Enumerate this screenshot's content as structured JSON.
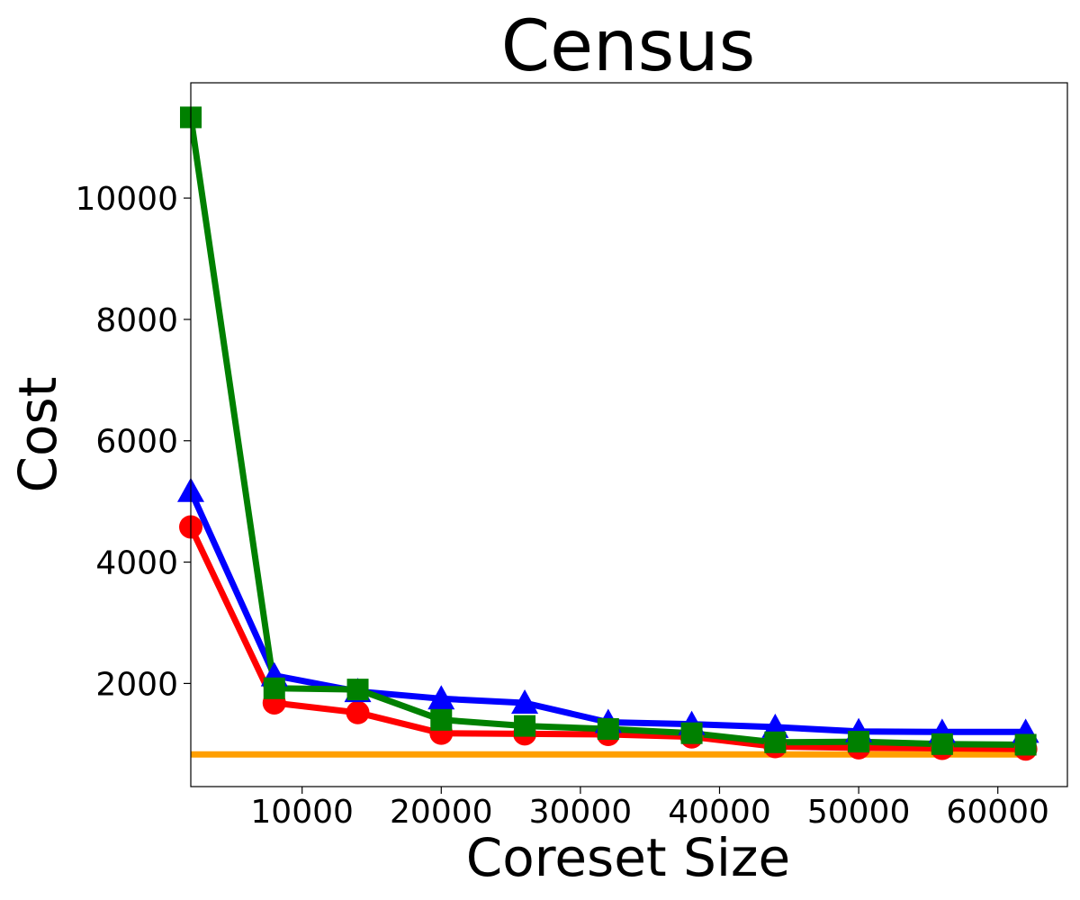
{
  "chart_data": {
    "type": "line",
    "title": "Census",
    "xlabel": "Coreset Size",
    "ylabel": "Cost",
    "xlim": [
      2000,
      65000
    ],
    "ylim": [
      300,
      11900
    ],
    "xticks": [
      10000,
      20000,
      30000,
      40000,
      50000,
      60000
    ],
    "yticks": [
      2000,
      4000,
      6000,
      8000,
      10000
    ],
    "xtick_labels": [
      "10000",
      "20000",
      "30000",
      "40000",
      "50000",
      "60000"
    ],
    "ytick_labels": [
      "2000",
      "4000",
      "6000",
      "8000",
      "10000"
    ],
    "grid": false,
    "legend": "none",
    "x": [
      2000,
      8000,
      14000,
      20000,
      26000,
      32000,
      38000,
      44000,
      50000,
      56000,
      62000
    ],
    "series": [
      {
        "color": "#ff9f00",
        "marker": "none",
        "values": [
          830,
          830,
          830,
          830,
          830,
          830,
          830,
          830,
          830,
          830,
          830
        ]
      },
      {
        "color": "#ff0000",
        "marker": "circle",
        "values": [
          4580,
          1680,
          1520,
          1180,
          1170,
          1160,
          1120,
          960,
          940,
          930,
          920
        ]
      },
      {
        "color": "#0000ff",
        "marker": "triangle",
        "values": [
          5170,
          2130,
          1870,
          1750,
          1680,
          1360,
          1330,
          1280,
          1210,
          1200,
          1200
        ]
      },
      {
        "color": "#008000",
        "marker": "square",
        "values": [
          11330,
          1920,
          1900,
          1400,
          1300,
          1250,
          1180,
          1030,
          1040,
          1000,
          990
        ]
      }
    ]
  }
}
